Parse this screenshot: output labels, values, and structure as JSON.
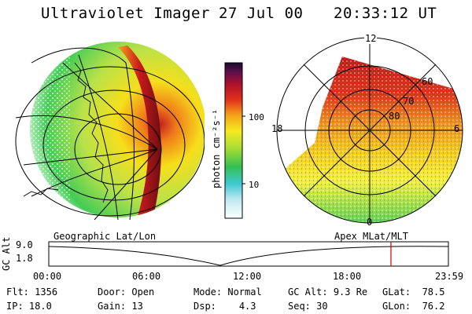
{
  "header": {
    "instrument": "Ultraviolet Imager",
    "date": "27 Jul 00",
    "time": "20:33:12 UT"
  },
  "colorbar": {
    "unit_label": "photon cm⁻²s⁻¹",
    "tick_labels": [
      "100",
      "10"
    ]
  },
  "left_panel": {
    "caption": "Geographic Lat/Lon"
  },
  "right_panel": {
    "caption": "Apex MLat/MLT",
    "mlt_labels": {
      "top": "12",
      "left": "18",
      "right": "6",
      "bottom": "0"
    },
    "lat_labels": [
      "60",
      "70",
      "80"
    ]
  },
  "timeline": {
    "ylabel": "GC Alt",
    "y_ticks": [
      "9.0",
      "1.8"
    ],
    "x_ticks": [
      "00:00",
      "06:00",
      "12:00",
      "18:00",
      "23:59"
    ],
    "marker_time_hours": 20.55,
    "marker_color": "#cc0000"
  },
  "status": {
    "flt": {
      "label": "Flt:",
      "value": "1356"
    },
    "ip": {
      "label": "IP:",
      "value": "18.0"
    },
    "door": {
      "label": "Door:",
      "value": "Open"
    },
    "gain": {
      "label": "Gain:",
      "value": "13"
    },
    "mode": {
      "label": "Mode:",
      "value": "Normal"
    },
    "dsp": {
      "label": "Dsp:",
      "value": "4.3"
    },
    "gcalt": {
      "label": "GC Alt:",
      "value": "9.3 Re"
    },
    "seq": {
      "label": "Seq:",
      "value": "30"
    },
    "glat": {
      "label": "GLat:",
      "value": "78.5"
    },
    "glon": {
      "label": "GLon:",
      "value": "76.2"
    }
  }
}
